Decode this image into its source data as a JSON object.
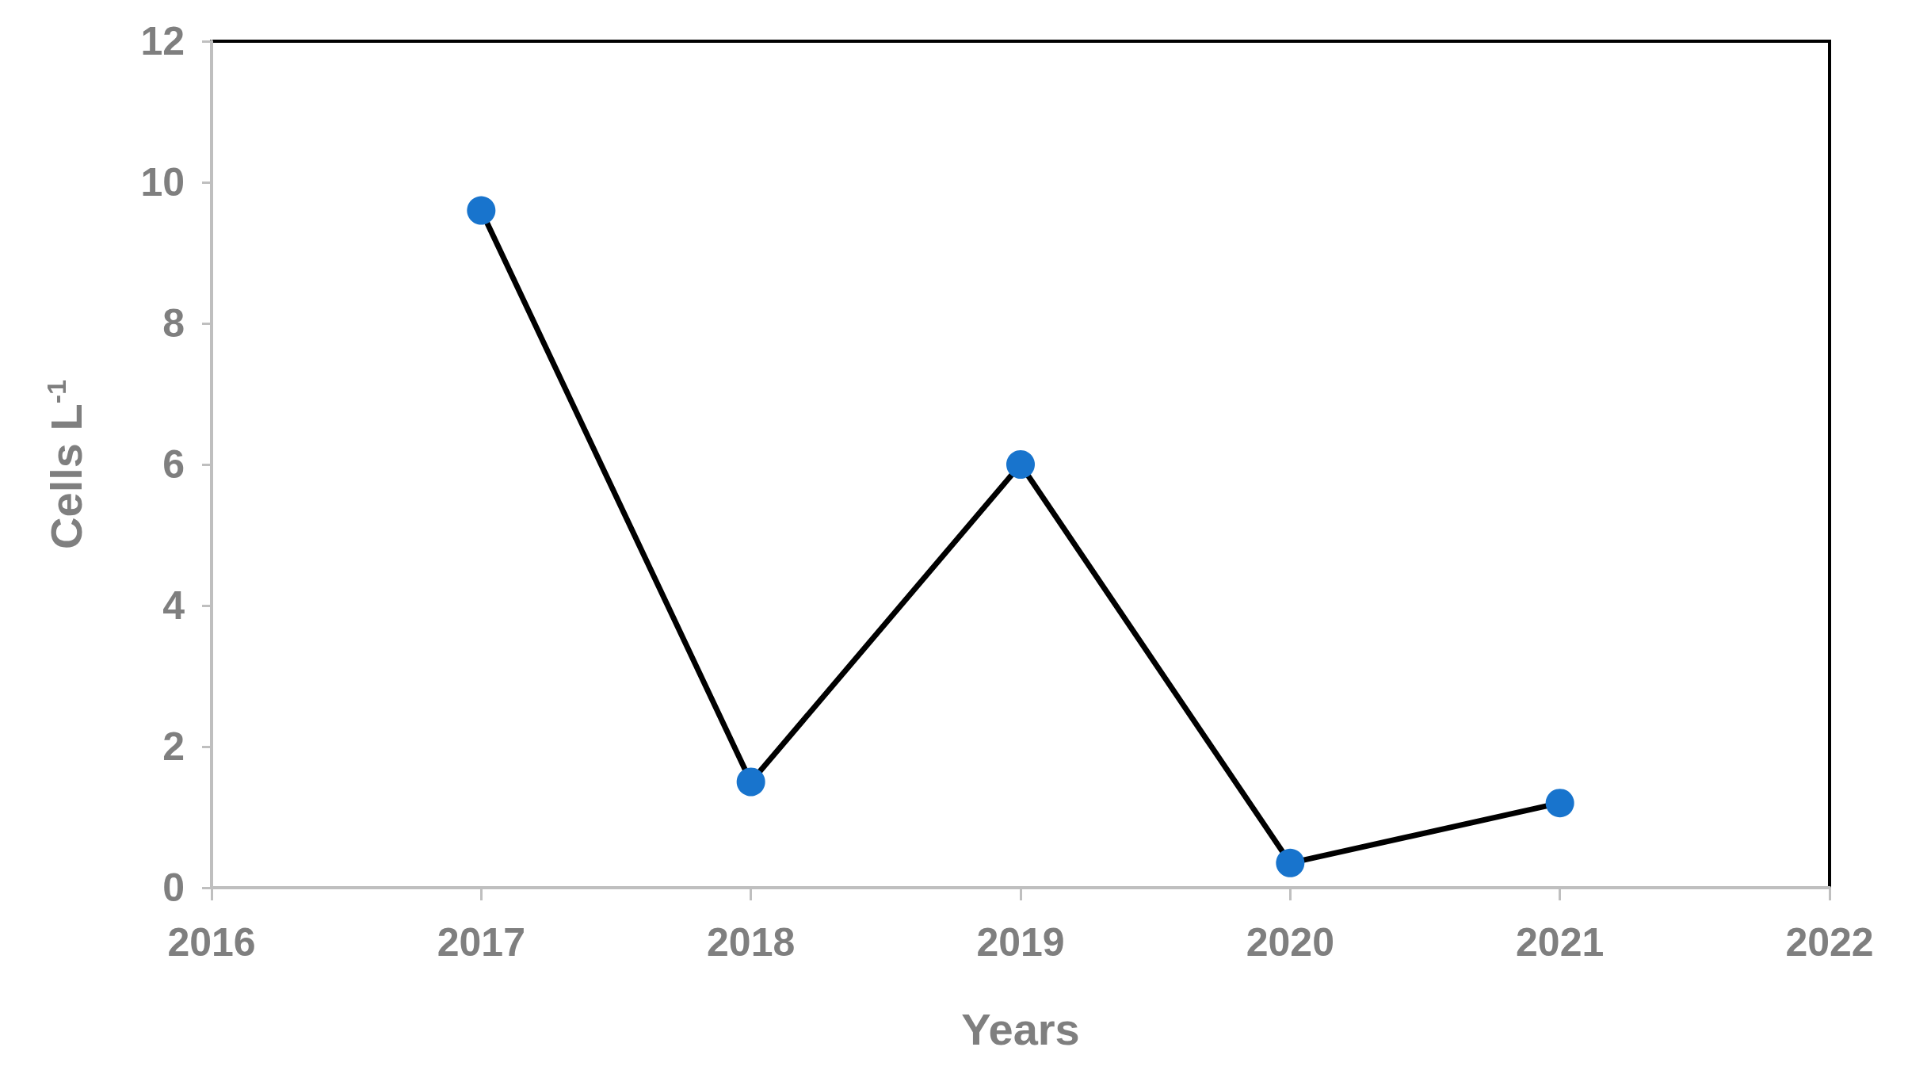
{
  "chart_data": {
    "type": "line",
    "xlabel": "Years",
    "ylabel": "Cells L$^{-1}$",
    "x": [
      2017,
      2018,
      2019,
      2020,
      2021
    ],
    "series": [
      {
        "color": "#000000",
        "colors": [
          "#1874cd",
          "#1874cd",
          "#1874cd",
          "#1874cd",
          "#1874cd"
        ],
        "values": [
          9.6,
          1.5,
          6.0,
          0.35,
          1.2
        ]
      }
    ],
    "marker": "circle",
    "line_style": "solid",
    "xlim": [
      2016,
      2022
    ],
    "xticks": [
      2016,
      2017,
      2018,
      2019,
      2020,
      2021,
      2022
    ],
    "ylim": [
      0,
      12
    ],
    "yticks": [
      0,
      2,
      4,
      6,
      8,
      10,
      12
    ],
    "grid": false
  }
}
